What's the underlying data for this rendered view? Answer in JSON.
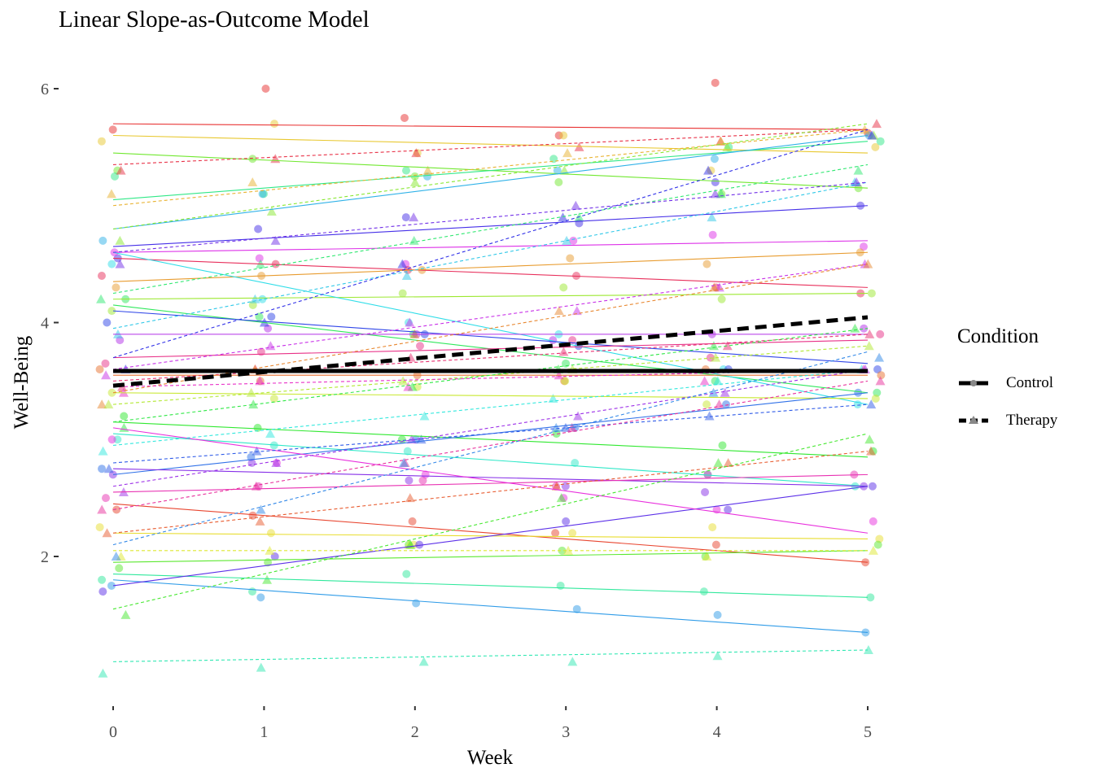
{
  "chart_data": {
    "type": "line",
    "title": "Linear Slope-as-Outcome Model",
    "xlabel": "Week",
    "ylabel": "Well-Being",
    "xlim": [
      -0.1,
      5.1
    ],
    "ylim": [
      0.8,
      6.1
    ],
    "xticks": [
      0,
      1,
      2,
      3,
      4,
      5
    ],
    "yticks": [
      2,
      4,
      6
    ],
    "weeks": [
      0,
      1,
      2,
      3,
      4,
      5
    ],
    "legend": {
      "title": "Condition",
      "entries": [
        "Control",
        "Therapy"
      ],
      "placement": "right"
    },
    "fixed_effects": [
      {
        "condition": "Control",
        "intercept": 3.586,
        "slope": 0.0
      },
      {
        "condition": "Therapy",
        "intercept": 3.46,
        "slope": 0.117
      }
    ],
    "subjects": [
      {
        "c": "Control",
        "i": 5.7,
        "s": -0.01,
        "v": [
          5.65,
          6.0,
          5.75,
          5.6,
          6.05,
          5.62
        ]
      },
      {
        "c": "Control",
        "i": 5.6,
        "s": -0.03,
        "v": [
          5.55,
          5.7,
          5.45,
          5.6,
          5.3,
          5.5
        ]
      },
      {
        "c": "Control",
        "i": 5.45,
        "s": -0.06,
        "v": [
          5.3,
          5.4,
          5.25,
          5.2,
          5.1,
          5.15
        ]
      },
      {
        "c": "Control",
        "i": 5.05,
        "s": 0.1,
        "v": [
          5.25,
          5.1,
          5.3,
          5.4,
          5.5,
          5.55
        ]
      },
      {
        "c": "Control",
        "i": 4.8,
        "s": 0.16,
        "v": [
          4.7,
          5.1,
          5.25,
          5.3,
          5.4,
          5.6
        ]
      },
      {
        "c": "Control",
        "i": 4.65,
        "s": 0.07,
        "v": [
          4.55,
          4.8,
          4.9,
          4.85,
          5.2,
          5.0
        ]
      },
      {
        "c": "Control",
        "i": 4.6,
        "s": 0.02,
        "v": [
          4.6,
          4.55,
          4.5,
          4.7,
          4.75,
          4.65
        ]
      },
      {
        "c": "Control",
        "i": 4.55,
        "s": -0.05,
        "v": [
          4.4,
          4.5,
          4.45,
          4.4,
          4.3,
          4.25
        ]
      },
      {
        "c": "Control",
        "i": 4.35,
        "s": 0.05,
        "v": [
          4.3,
          4.4,
          4.45,
          4.55,
          4.5,
          4.6
        ]
      },
      {
        "c": "Control",
        "i": 4.2,
        "s": 0.01,
        "v": [
          4.1,
          4.15,
          4.25,
          4.3,
          4.2,
          4.25
        ]
      },
      {
        "c": "Control",
        "i": 4.15,
        "s": -0.15,
        "v": [
          4.2,
          4.05,
          3.9,
          3.65,
          3.5,
          3.4
        ]
      },
      {
        "c": "Control",
        "i": 4.6,
        "s": -0.26,
        "v": [
          4.5,
          4.2,
          4.0,
          3.9,
          3.6,
          3.3
        ]
      },
      {
        "c": "Control",
        "i": 4.1,
        "s": -0.09,
        "v": [
          4.0,
          4.05,
          3.9,
          3.8,
          3.6,
          3.6
        ]
      },
      {
        "c": "Control",
        "i": 3.9,
        "s": 0.0,
        "v": [
          3.85,
          3.95,
          3.9,
          3.85,
          3.9,
          3.95
        ]
      },
      {
        "c": "Control",
        "i": 3.7,
        "s": 0.03,
        "v": [
          3.65,
          3.75,
          3.8,
          3.85,
          3.7,
          3.9
        ]
      },
      {
        "c": "Control",
        "i": 3.55,
        "s": 0.0,
        "v": [
          3.6,
          3.5,
          3.55,
          3.5,
          3.6,
          3.55
        ]
      },
      {
        "c": "Control",
        "i": 3.4,
        "s": -0.01,
        "v": [
          3.4,
          3.35,
          3.45,
          3.5,
          3.3,
          3.35
        ]
      },
      {
        "c": "Control",
        "i": 3.15,
        "s": -0.06,
        "v": [
          3.2,
          3.1,
          3.0,
          3.05,
          2.95,
          2.9
        ]
      },
      {
        "c": "Control",
        "i": 3.05,
        "s": -0.09,
        "v": [
          3.0,
          2.95,
          2.9,
          2.8,
          2.7,
          2.6
        ]
      },
      {
        "c": "Control",
        "i": 2.7,
        "s": 0.14,
        "v": [
          2.75,
          2.85,
          3.0,
          3.1,
          3.3,
          3.4
        ]
      },
      {
        "c": "Control",
        "i": 2.75,
        "s": -0.03,
        "v": [
          2.7,
          2.8,
          2.65,
          2.6,
          2.55,
          2.6
        ]
      },
      {
        "c": "Control",
        "i": 2.55,
        "s": 0.03,
        "v": [
          2.5,
          2.6,
          2.65,
          2.6,
          2.7,
          2.7
        ]
      },
      {
        "c": "Control",
        "i": 2.45,
        "s": -0.1,
        "v": [
          2.4,
          2.35,
          2.3,
          2.2,
          2.1,
          1.95
        ]
      },
      {
        "c": "Control",
        "i": 2.2,
        "s": -0.01,
        "v": [
          2.25,
          2.2,
          2.1,
          2.2,
          2.25,
          2.15
        ]
      },
      {
        "c": "Control",
        "i": 1.95,
        "s": 0.02,
        "v": [
          1.9,
          1.95,
          2.1,
          2.05,
          2.0,
          2.1
        ]
      },
      {
        "c": "Control",
        "i": 1.85,
        "s": -0.04,
        "v": [
          1.8,
          1.7,
          1.85,
          1.75,
          1.7,
          1.65
        ]
      },
      {
        "c": "Control",
        "i": 1.8,
        "s": -0.09,
        "v": [
          1.75,
          1.65,
          1.6,
          1.55,
          1.5,
          1.35
        ]
      },
      {
        "c": "Control",
        "i": 1.75,
        "s": 0.17,
        "v": [
          1.7,
          2.0,
          2.1,
          2.3,
          2.4,
          2.6
        ]
      },
      {
        "c": "Control",
        "i": 3.1,
        "s": -0.18,
        "v": [
          3.0,
          2.8,
          2.7,
          2.5,
          2.4,
          2.3
        ]
      },
      {
        "c": "Therapy",
        "i": 5.35,
        "s": 0.06,
        "v": [
          5.3,
          5.4,
          5.45,
          5.5,
          5.55,
          5.7
        ]
      },
      {
        "c": "Therapy",
        "i": 5.0,
        "s": 0.13,
        "v": [
          5.1,
          5.2,
          5.3,
          5.45,
          5.55,
          5.65
        ]
      },
      {
        "c": "Therapy",
        "i": 4.8,
        "s": 0.18,
        "v": [
          4.7,
          4.95,
          5.2,
          5.3,
          5.5,
          5.6
        ]
      },
      {
        "c": "Therapy",
        "i": 4.25,
        "s": 0.22,
        "v": [
          4.2,
          4.5,
          4.7,
          4.9,
          5.1,
          5.3
        ]
      },
      {
        "c": "Therapy",
        "i": 3.95,
        "s": 0.25,
        "v": [
          3.9,
          4.2,
          4.4,
          4.7,
          4.9,
          5.2
        ]
      },
      {
        "c": "Therapy",
        "i": 3.7,
        "s": 0.39,
        "v": [
          3.6,
          4.0,
          4.5,
          4.9,
          5.3,
          5.6
        ]
      },
      {
        "c": "Therapy",
        "i": 3.6,
        "s": 0.18,
        "v": [
          3.55,
          3.8,
          4.0,
          4.1,
          4.3,
          4.5
        ]
      },
      {
        "c": "Therapy",
        "i": 3.5,
        "s": 0.08,
        "v": [
          3.45,
          3.6,
          3.7,
          3.75,
          3.8,
          3.9
        ]
      },
      {
        "c": "Therapy",
        "i": 3.4,
        "s": 0.22,
        "v": [
          3.3,
          3.6,
          3.9,
          4.1,
          4.3,
          4.5
        ]
      },
      {
        "c": "Therapy",
        "i": 3.3,
        "s": 0.1,
        "v": [
          3.3,
          3.4,
          3.5,
          3.6,
          3.7,
          3.8
        ]
      },
      {
        "c": "Therapy",
        "i": 3.15,
        "s": 0.16,
        "v": [
          3.1,
          3.3,
          3.45,
          3.6,
          3.8,
          3.95
        ]
      },
      {
        "c": "Therapy",
        "i": 2.95,
        "s": 0.13,
        "v": [
          2.9,
          3.05,
          3.2,
          3.35,
          3.5,
          3.6
        ]
      },
      {
        "c": "Therapy",
        "i": 2.8,
        "s": 0.1,
        "v": [
          2.75,
          2.9,
          3.0,
          3.1,
          3.2,
          3.3
        ]
      },
      {
        "c": "Therapy",
        "i": 2.6,
        "s": 0.2,
        "v": [
          2.55,
          2.8,
          3.0,
          3.2,
          3.4,
          3.6
        ]
      },
      {
        "c": "Therapy",
        "i": 2.4,
        "s": 0.22,
        "v": [
          2.4,
          2.6,
          2.8,
          3.1,
          3.3,
          3.5
        ]
      },
      {
        "c": "Therapy",
        "i": 2.2,
        "s": 0.14,
        "v": [
          2.2,
          2.3,
          2.5,
          2.6,
          2.8,
          2.9
        ]
      },
      {
        "c": "Therapy",
        "i": 2.05,
        "s": 0.0,
        "v": [
          2.0,
          2.05,
          2.1,
          2.05,
          2.0,
          2.05
        ]
      },
      {
        "c": "Therapy",
        "i": 1.55,
        "s": 0.3,
        "v": [
          1.5,
          1.8,
          2.1,
          2.5,
          2.8,
          3.0
        ]
      },
      {
        "c": "Therapy",
        "i": 1.1,
        "s": 0.02,
        "v": [
          1.0,
          1.05,
          1.1,
          1.1,
          1.15,
          1.2
        ]
      },
      {
        "c": "Therapy",
        "i": 2.1,
        "s": 0.33,
        "v": [
          2.0,
          2.4,
          2.8,
          3.1,
          3.4,
          3.7
        ]
      },
      {
        "c": "Therapy",
        "i": 4.6,
        "s": 0.12,
        "v": [
          4.5,
          4.7,
          4.9,
          5.0,
          5.1,
          5.2
        ]
      },
      {
        "c": "Therapy",
        "i": 3.45,
        "s": 0.03,
        "v": [
          3.4,
          3.5,
          3.45,
          3.55,
          3.5,
          3.6
        ]
      }
    ]
  }
}
